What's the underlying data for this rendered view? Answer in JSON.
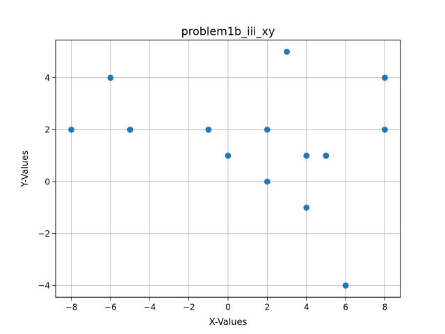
{
  "chart_data": {
    "type": "scatter",
    "title": "problem1b_iii_xy",
    "xlabel": "X-Values",
    "ylabel": "Y-Values",
    "xlim": [
      -8.8,
      8.8
    ],
    "ylim": [
      -4.45,
      5.45
    ],
    "xticks": [
      -8,
      -6,
      -4,
      -2,
      0,
      2,
      4,
      6,
      8
    ],
    "yticks": [
      -4,
      -2,
      0,
      2,
      4
    ],
    "xtick_labels": [
      "−8",
      "−6",
      "−4",
      "−2",
      "0",
      "2",
      "4",
      "6",
      "8"
    ],
    "ytick_labels": [
      "−4",
      "−2",
      "0",
      "2",
      "4"
    ],
    "grid": true,
    "marker_color": "#1f77b4",
    "points": [
      {
        "x": -8,
        "y": 2
      },
      {
        "x": -6,
        "y": 4
      },
      {
        "x": -5,
        "y": 2
      },
      {
        "x": -1,
        "y": 2
      },
      {
        "x": 0,
        "y": 1
      },
      {
        "x": 2,
        "y": 2
      },
      {
        "x": 2,
        "y": 0
      },
      {
        "x": 3,
        "y": 5
      },
      {
        "x": 4,
        "y": 1
      },
      {
        "x": 4,
        "y": -1
      },
      {
        "x": 5,
        "y": 1
      },
      {
        "x": 6,
        "y": -4
      },
      {
        "x": 8,
        "y": 4
      },
      {
        "x": 8,
        "y": 2
      }
    ]
  }
}
